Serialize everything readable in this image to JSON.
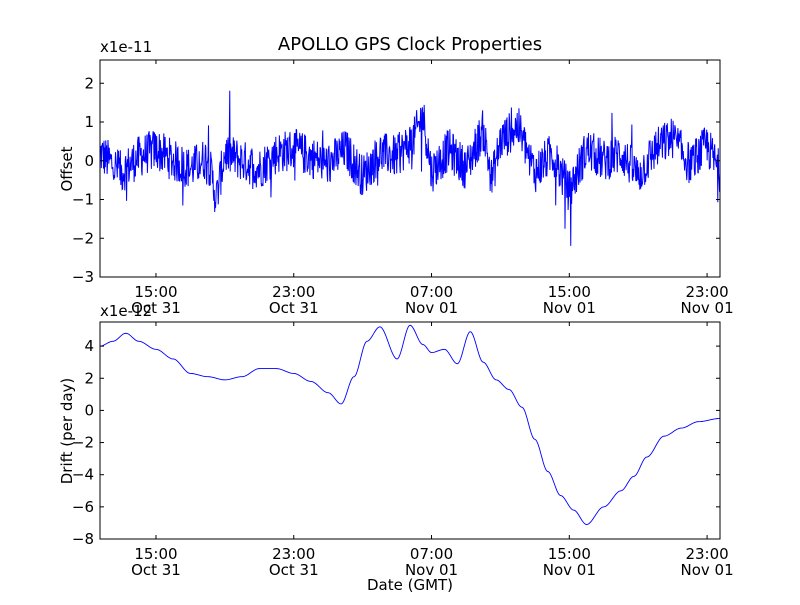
{
  "figure": {
    "title": "APOLLO GPS Clock Properties"
  },
  "chart_data": [
    {
      "type": "line",
      "ylabel": "Offset",
      "multiplier": "x1e-11",
      "ylim": [
        -3,
        2.6
      ],
      "xlim": [
        "Oct 31 11:45",
        "Nov 01 23:45"
      ],
      "y_ticks": [
        -3,
        -2,
        -1,
        0,
        1,
        2
      ],
      "x_ticks": [
        {
          "time": "Oct 31 15:00",
          "line1": "15:00",
          "line2": "Oct 31"
        },
        {
          "time": "Oct 31 23:00",
          "line1": "23:00",
          "line2": "Oct 31"
        },
        {
          "time": "Nov 01 07:00",
          "line1": "07:00",
          "line2": "Nov 01"
        },
        {
          "time": "Nov 01 15:00",
          "line1": "15:00",
          "line2": "Nov 01"
        },
        {
          "time": "Nov 01 23:00",
          "line1": "23:00",
          "line2": "Nov 01"
        }
      ],
      "series_color": "#0000ff",
      "x": [
        "Oct 31 11:45",
        "Oct 31 13:00",
        "Oct 31 14:00",
        "Oct 31 15:00",
        "Oct 31 16:00",
        "Oct 31 17:00",
        "Oct 31 18:00",
        "Oct 31 18:30",
        "Oct 31 19:00",
        "Oct 31 20:00",
        "Oct 31 21:00",
        "Oct 31 22:00",
        "Oct 31 23:00",
        "Nov 01 00:00",
        "Nov 01 01:00",
        "Nov 01 02:00",
        "Nov 01 03:00",
        "Nov 01 04:00",
        "Nov 01 05:00",
        "Nov 01 06:00",
        "Nov 01 06:30",
        "Nov 01 07:00",
        "Nov 01 08:00",
        "Nov 01 09:00",
        "Nov 01 10:00",
        "Nov 01 10:30",
        "Nov 01 11:00",
        "Nov 01 12:00",
        "Nov 01 13:00",
        "Nov 01 14:00",
        "Nov 01 15:00",
        "Nov 01 16:00",
        "Nov 01 17:00",
        "Nov 01 18:00",
        "Nov 01 19:00",
        "Nov 01 20:00",
        "Nov 01 21:00",
        "Nov 01 22:00",
        "Nov 01 23:00",
        "Nov 01 23:45"
      ],
      "y": [
        0.2,
        -0.3,
        0.1,
        0.3,
        0.0,
        -0.2,
        0.1,
        -1.0,
        0.2,
        0.0,
        -0.2,
        0.2,
        0.3,
        0.1,
        -0.1,
        0.3,
        -0.4,
        0.2,
        0.1,
        0.6,
        1.2,
        -0.3,
        0.3,
        -0.2,
        0.8,
        -0.5,
        0.5,
        0.9,
        -0.3,
        0.2,
        -0.8,
        0.3,
        0.0,
        0.2,
        -0.4,
        0.3,
        0.6,
        -0.1,
        0.4,
        -0.3
      ]
    },
    {
      "type": "line",
      "ylabel": "Drift (per day)",
      "xlabel": "Date (GMT)",
      "multiplier": "x1e-12",
      "ylim": [
        -8,
        5.5
      ],
      "xlim": [
        "Oct 31 11:45",
        "Nov 01 23:45"
      ],
      "y_ticks": [
        -8,
        -6,
        -4,
        -2,
        0,
        2,
        4
      ],
      "x_ticks": [
        {
          "time": "Oct 31 15:00",
          "line1": "15:00",
          "line2": "Oct 31"
        },
        {
          "time": "Oct 31 23:00",
          "line1": "23:00",
          "line2": "Oct 31"
        },
        {
          "time": "Nov 01 07:00",
          "line1": "07:00",
          "line2": "Nov 01"
        },
        {
          "time": "Nov 01 15:00",
          "line1": "15:00",
          "line2": "Nov 01"
        },
        {
          "time": "Nov 01 23:00",
          "line1": "23:00",
          "line2": "Nov 01"
        }
      ],
      "series_color": "#0000ff",
      "x": [
        "Oct 31 11:45",
        "Oct 31 12:30",
        "Oct 31 13:15",
        "Oct 31 14:00",
        "Oct 31 15:00",
        "Oct 31 16:00",
        "Oct 31 17:00",
        "Oct 31 18:00",
        "Oct 31 19:00",
        "Oct 31 20:00",
        "Oct 31 21:00",
        "Oct 31 22:00",
        "Oct 31 23:00",
        "Nov 01 00:00",
        "Nov 01 01:00",
        "Nov 01 01:45",
        "Nov 01 02:30",
        "Nov 01 03:15",
        "Nov 01 04:00",
        "Nov 01 05:00",
        "Nov 01 05:45",
        "Nov 01 06:30",
        "Nov 01 07:00",
        "Nov 01 07:45",
        "Nov 01 08:30",
        "Nov 01 09:15",
        "Nov 01 10:00",
        "Nov 01 10:45",
        "Nov 01 11:30",
        "Nov 01 12:15",
        "Nov 01 13:00",
        "Nov 01 13:45",
        "Nov 01 14:30",
        "Nov 01 15:15",
        "Nov 01 16:00",
        "Nov 01 17:00",
        "Nov 01 18:00",
        "Nov 01 18:45",
        "Nov 01 19:30",
        "Nov 01 20:30",
        "Nov 01 21:30",
        "Nov 01 22:30",
        "Nov 01 23:45"
      ],
      "y": [
        4.0,
        4.3,
        4.8,
        4.3,
        3.8,
        3.2,
        2.3,
        2.1,
        1.9,
        2.1,
        2.6,
        2.6,
        2.3,
        1.8,
        1.1,
        0.4,
        2.1,
        4.3,
        5.2,
        3.2,
        5.3,
        4.1,
        3.6,
        3.8,
        2.9,
        4.9,
        3.0,
        1.9,
        1.3,
        0.2,
        -1.8,
        -3.8,
        -5.3,
        -6.2,
        -7.1,
        -6.0,
        -5.0,
        -4.1,
        -2.9,
        -1.6,
        -1.1,
        -0.7,
        -0.5
      ]
    }
  ]
}
